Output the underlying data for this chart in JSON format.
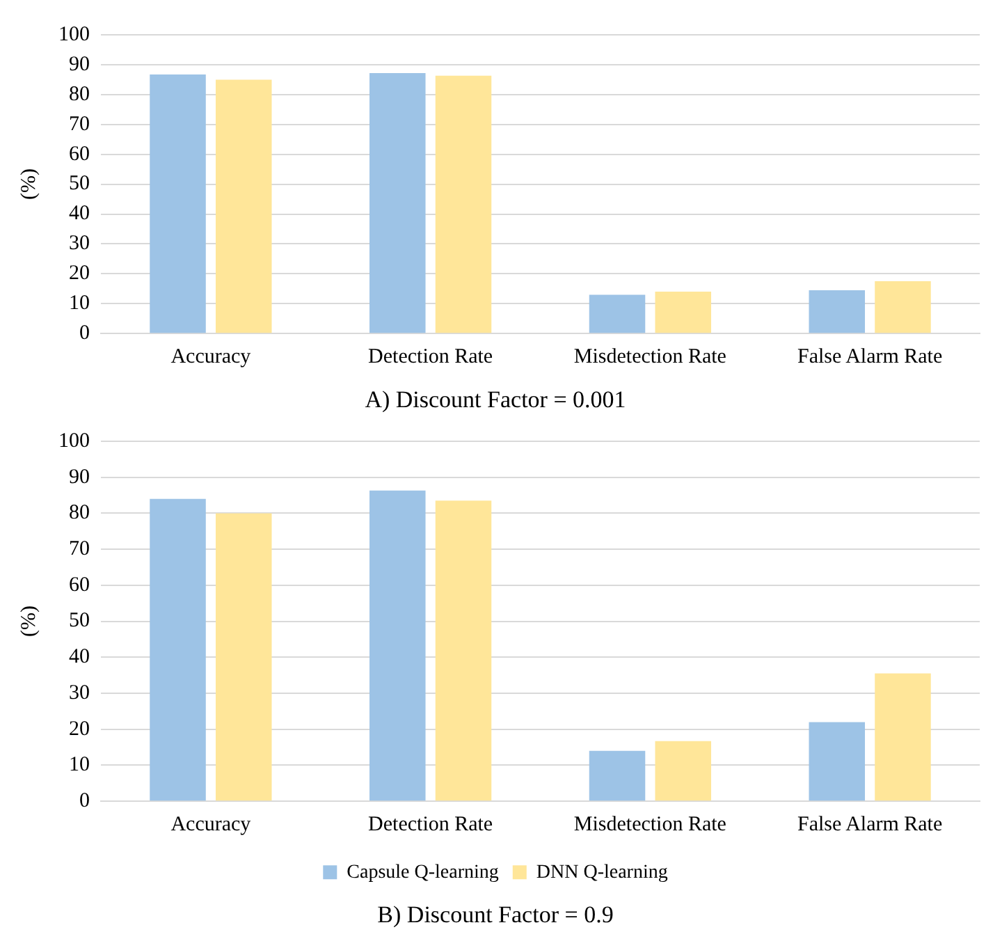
{
  "chart_data": [
    {
      "type": "bar",
      "title": "A) Discount Factor = 0.001",
      "ylabel": "(%)",
      "categories": [
        "Accuracy",
        "Detection Rate",
        "Misdetection Rate",
        "False Alarm Rate"
      ],
      "series": [
        {
          "color": "#9dc3e6",
          "values": [
            86.7,
            87.2,
            13,
            14.5
          ]
        },
        {
          "color": "#ffe699",
          "values": [
            85,
            86.3,
            14,
            17.5
          ]
        }
      ],
      "ylim": [
        0,
        100
      ],
      "yticks": [
        0,
        10,
        20,
        30,
        40,
        50,
        60,
        70,
        80,
        90,
        100
      ],
      "grid": "y",
      "legend": false
    },
    {
      "type": "bar",
      "title": "B) Discount Factor = 0.9",
      "ylabel": "(%)",
      "categories": [
        "Accuracy",
        "Detection Rate",
        "Misdetection Rate",
        "False Alarm Rate"
      ],
      "series": [
        {
          "name": "Capsule Q-learning",
          "color": "#9dc3e6",
          "values": [
            84,
            86.3,
            14,
            22
          ]
        },
        {
          "name": "DNN Q-learning",
          "color": "#ffe699",
          "values": [
            80,
            83.5,
            16.7,
            35.5
          ]
        }
      ],
      "ylim": [
        0,
        100
      ],
      "yticks": [
        0,
        10,
        20,
        30,
        40,
        50,
        60,
        70,
        80,
        90,
        100
      ],
      "grid": "y",
      "legend": "bottom"
    }
  ]
}
